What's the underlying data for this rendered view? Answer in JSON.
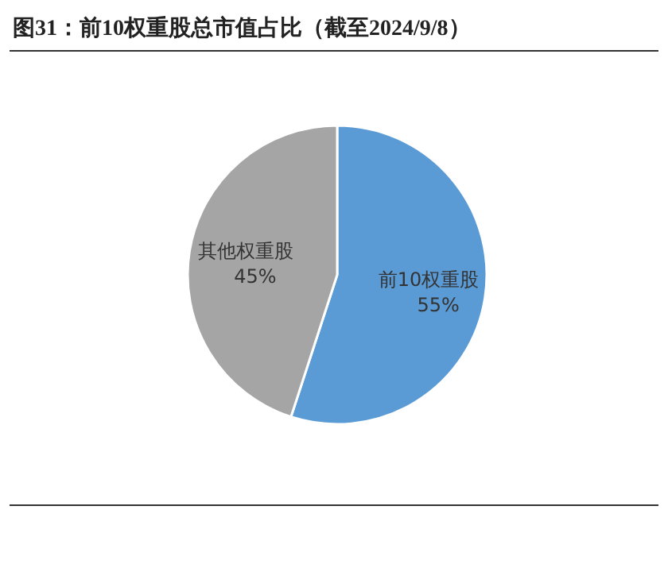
{
  "chart_data": {
    "type": "pie",
    "title": "图31：前10权重股总市值占比（截至2024/9/8）",
    "categories": [
      "前10权重股",
      "其他权重股"
    ],
    "values": [
      55,
      45
    ],
    "colors": [
      "#5b9bd5",
      "#a5a5a5"
    ],
    "value_labels": [
      "55%",
      "45%"
    ],
    "legend": false
  }
}
